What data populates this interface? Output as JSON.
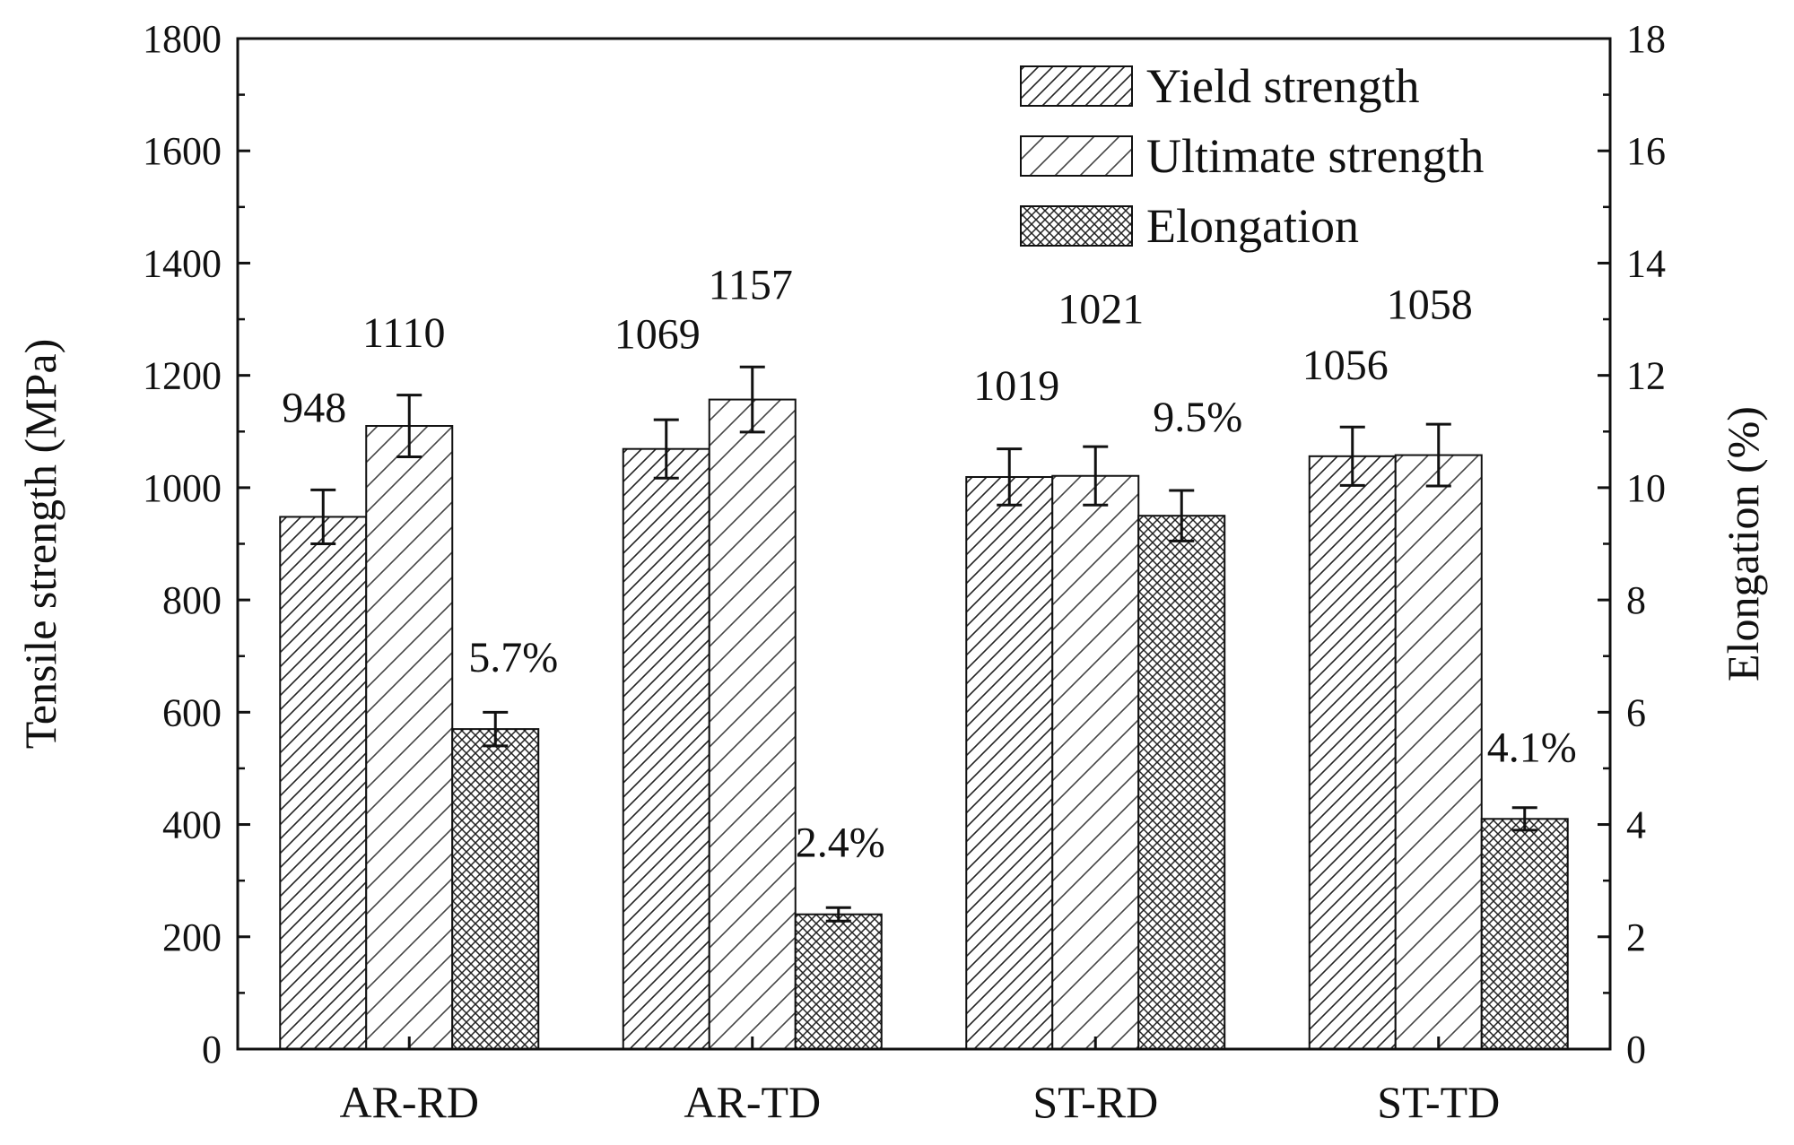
{
  "chart_data": {
    "type": "bar",
    "categories": [
      "AR-RD",
      "AR-TD",
      "ST-RD",
      "ST-TD"
    ],
    "series": [
      {
        "name": "Yield strength",
        "axis": "left",
        "values": [
          948,
          1069,
          1019,
          1056
        ],
        "errors": [
          48,
          52,
          50,
          52
        ],
        "labels": [
          "948",
          "1069",
          "1019",
          "1056"
        ],
        "pattern": "dense-hatch"
      },
      {
        "name": "Ultimate strength",
        "axis": "left",
        "values": [
          1110,
          1157,
          1021,
          1058
        ],
        "errors": [
          55,
          58,
          52,
          55
        ],
        "labels": [
          "1110",
          "1157",
          "1021",
          "1058"
        ],
        "pattern": "sparse-hatch"
      },
      {
        "name": "Elongation",
        "axis": "right",
        "values": [
          5.7,
          2.4,
          9.5,
          4.1
        ],
        "errors": [
          0.3,
          0.12,
          0.45,
          0.2
        ],
        "labels": [
          "5.7%",
          "2.4%",
          "9.5%",
          "4.1%"
        ],
        "pattern": "crosshatch"
      }
    ],
    "ylabel": "Tensile strength (MPa)",
    "y2label": "Elongation (%)",
    "ylim": [
      0,
      1800
    ],
    "y2lim": [
      0,
      18
    ],
    "yticks": [
      0,
      200,
      400,
      600,
      800,
      1000,
      1200,
      1400,
      1600,
      1800
    ],
    "y2ticks": [
      0,
      2,
      4,
      6,
      8,
      10,
      12,
      14,
      16,
      18
    ],
    "legend_position": "top-right",
    "grid": false,
    "colors": {
      "axis": "#111111",
      "background": "#ffffff",
      "bar_fill": "#ffffff",
      "hatch": "#222222",
      "sparse_hatch": "#444444"
    }
  }
}
